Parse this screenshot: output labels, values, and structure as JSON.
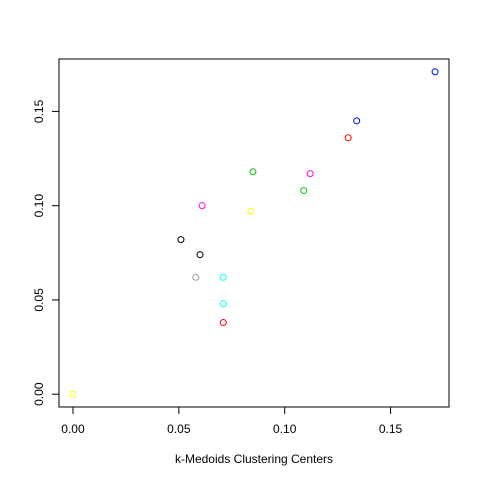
{
  "chart_data": {
    "type": "scatter",
    "title": "",
    "xlabel": "k-Medoids Clustering Centers",
    "ylabel": "",
    "xlim": [
      -0.0066,
      0.1776
    ],
    "ylim": [
      -0.0068,
      0.1778
    ],
    "x_ticks": [
      {
        "value": 0.0,
        "label": "0.00"
      },
      {
        "value": 0.05,
        "label": "0.05"
      },
      {
        "value": 0.1,
        "label": "0.10"
      },
      {
        "value": 0.15,
        "label": "0.15"
      }
    ],
    "y_ticks": [
      {
        "value": 0.0,
        "label": "0.00"
      },
      {
        "value": 0.05,
        "label": "0.05"
      },
      {
        "value": 0.1,
        "label": "0.10"
      },
      {
        "value": 0.15,
        "label": "0.15"
      }
    ],
    "grid": false,
    "marker": "open-circle",
    "points": [
      {
        "x": 0.0,
        "y": 0.0,
        "color": "#ffff00"
      },
      {
        "x": 0.051,
        "y": 0.082,
        "color": "#000000"
      },
      {
        "x": 0.06,
        "y": 0.074,
        "color": "#000000"
      },
      {
        "x": 0.058,
        "y": 0.062,
        "color": "#999999"
      },
      {
        "x": 0.061,
        "y": 0.1,
        "color": "#ff00ff"
      },
      {
        "x": 0.071,
        "y": 0.062,
        "color": "#00ffff"
      },
      {
        "x": 0.071,
        "y": 0.048,
        "color": "#00ffff"
      },
      {
        "x": 0.071,
        "y": 0.038,
        "color": "#ff0000"
      },
      {
        "x": 0.084,
        "y": 0.097,
        "color": "#ffff00"
      },
      {
        "x": 0.085,
        "y": 0.118,
        "color": "#00cc00"
      },
      {
        "x": 0.109,
        "y": 0.108,
        "color": "#00cc00"
      },
      {
        "x": 0.112,
        "y": 0.117,
        "color": "#ff00ff"
      },
      {
        "x": 0.13,
        "y": 0.136,
        "color": "#ff0000"
      },
      {
        "x": 0.134,
        "y": 0.145,
        "color": "#0000ff"
      },
      {
        "x": 0.171,
        "y": 0.171,
        "color": "#0000ff"
      }
    ]
  }
}
